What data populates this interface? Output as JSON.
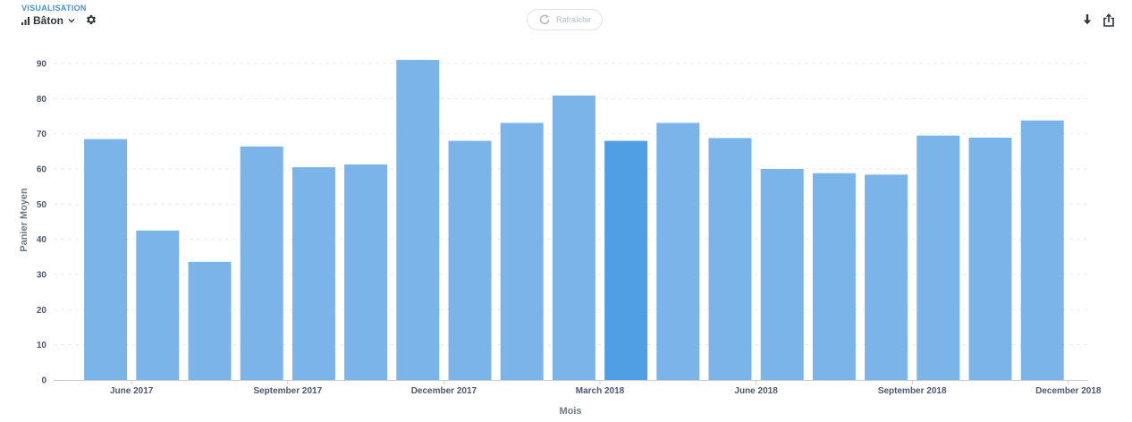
{
  "header": {
    "visualisation_label": "VISUALISATION",
    "visualisation_type": "Bâton",
    "refresh_label": "Rafraîchir",
    "icons": {
      "bar": "bar-chart-icon",
      "chevron": "chevron-down-icon",
      "settings": "gear-icon",
      "refresh": "refresh-icon",
      "download": "download-icon",
      "share": "share-icon"
    }
  },
  "colors": {
    "bar": "#7bb4e8",
    "bar_highlight": "#509ee3",
    "grid": "#e8ebee",
    "text": "#4c5773"
  },
  "chart_data": {
    "type": "bar",
    "xlabel": "Mois",
    "ylabel": "Panier Moyen",
    "ylim": [
      0,
      90
    ],
    "yticks": [
      0,
      10,
      20,
      30,
      40,
      50,
      60,
      70,
      80,
      90
    ],
    "grid": true,
    "x_dates": [
      "2017-05",
      "2017-06",
      "2017-07",
      "2017-08",
      "2017-09",
      "2017-10",
      "2017-11",
      "2017-12",
      "2018-01",
      "2018-02",
      "2018-03",
      "2018-04",
      "2018-05",
      "2018-06",
      "2018-07",
      "2018-08",
      "2018-09",
      "2018-10",
      "2018-11"
    ],
    "values": [
      68.5,
      42.5,
      33.6,
      66.4,
      60.5,
      61.3,
      91.0,
      68.0,
      73.1,
      80.9,
      68.0,
      73.1,
      68.8,
      60.0,
      58.8,
      58.4,
      69.5,
      68.9,
      73.8
    ],
    "highlighted_date": "2018-03",
    "xticks": [
      {
        "date": "2017-06",
        "label": "June 2017"
      },
      {
        "date": "2017-09",
        "label": "September 2017"
      },
      {
        "date": "2017-12",
        "label": "December 2017"
      },
      {
        "date": "2018-03",
        "label": "March 2018"
      },
      {
        "date": "2018-06",
        "label": "June 2018"
      },
      {
        "date": "2018-09",
        "label": "September 2018"
      },
      {
        "date": "2018-12",
        "label": "December 2018"
      }
    ]
  }
}
